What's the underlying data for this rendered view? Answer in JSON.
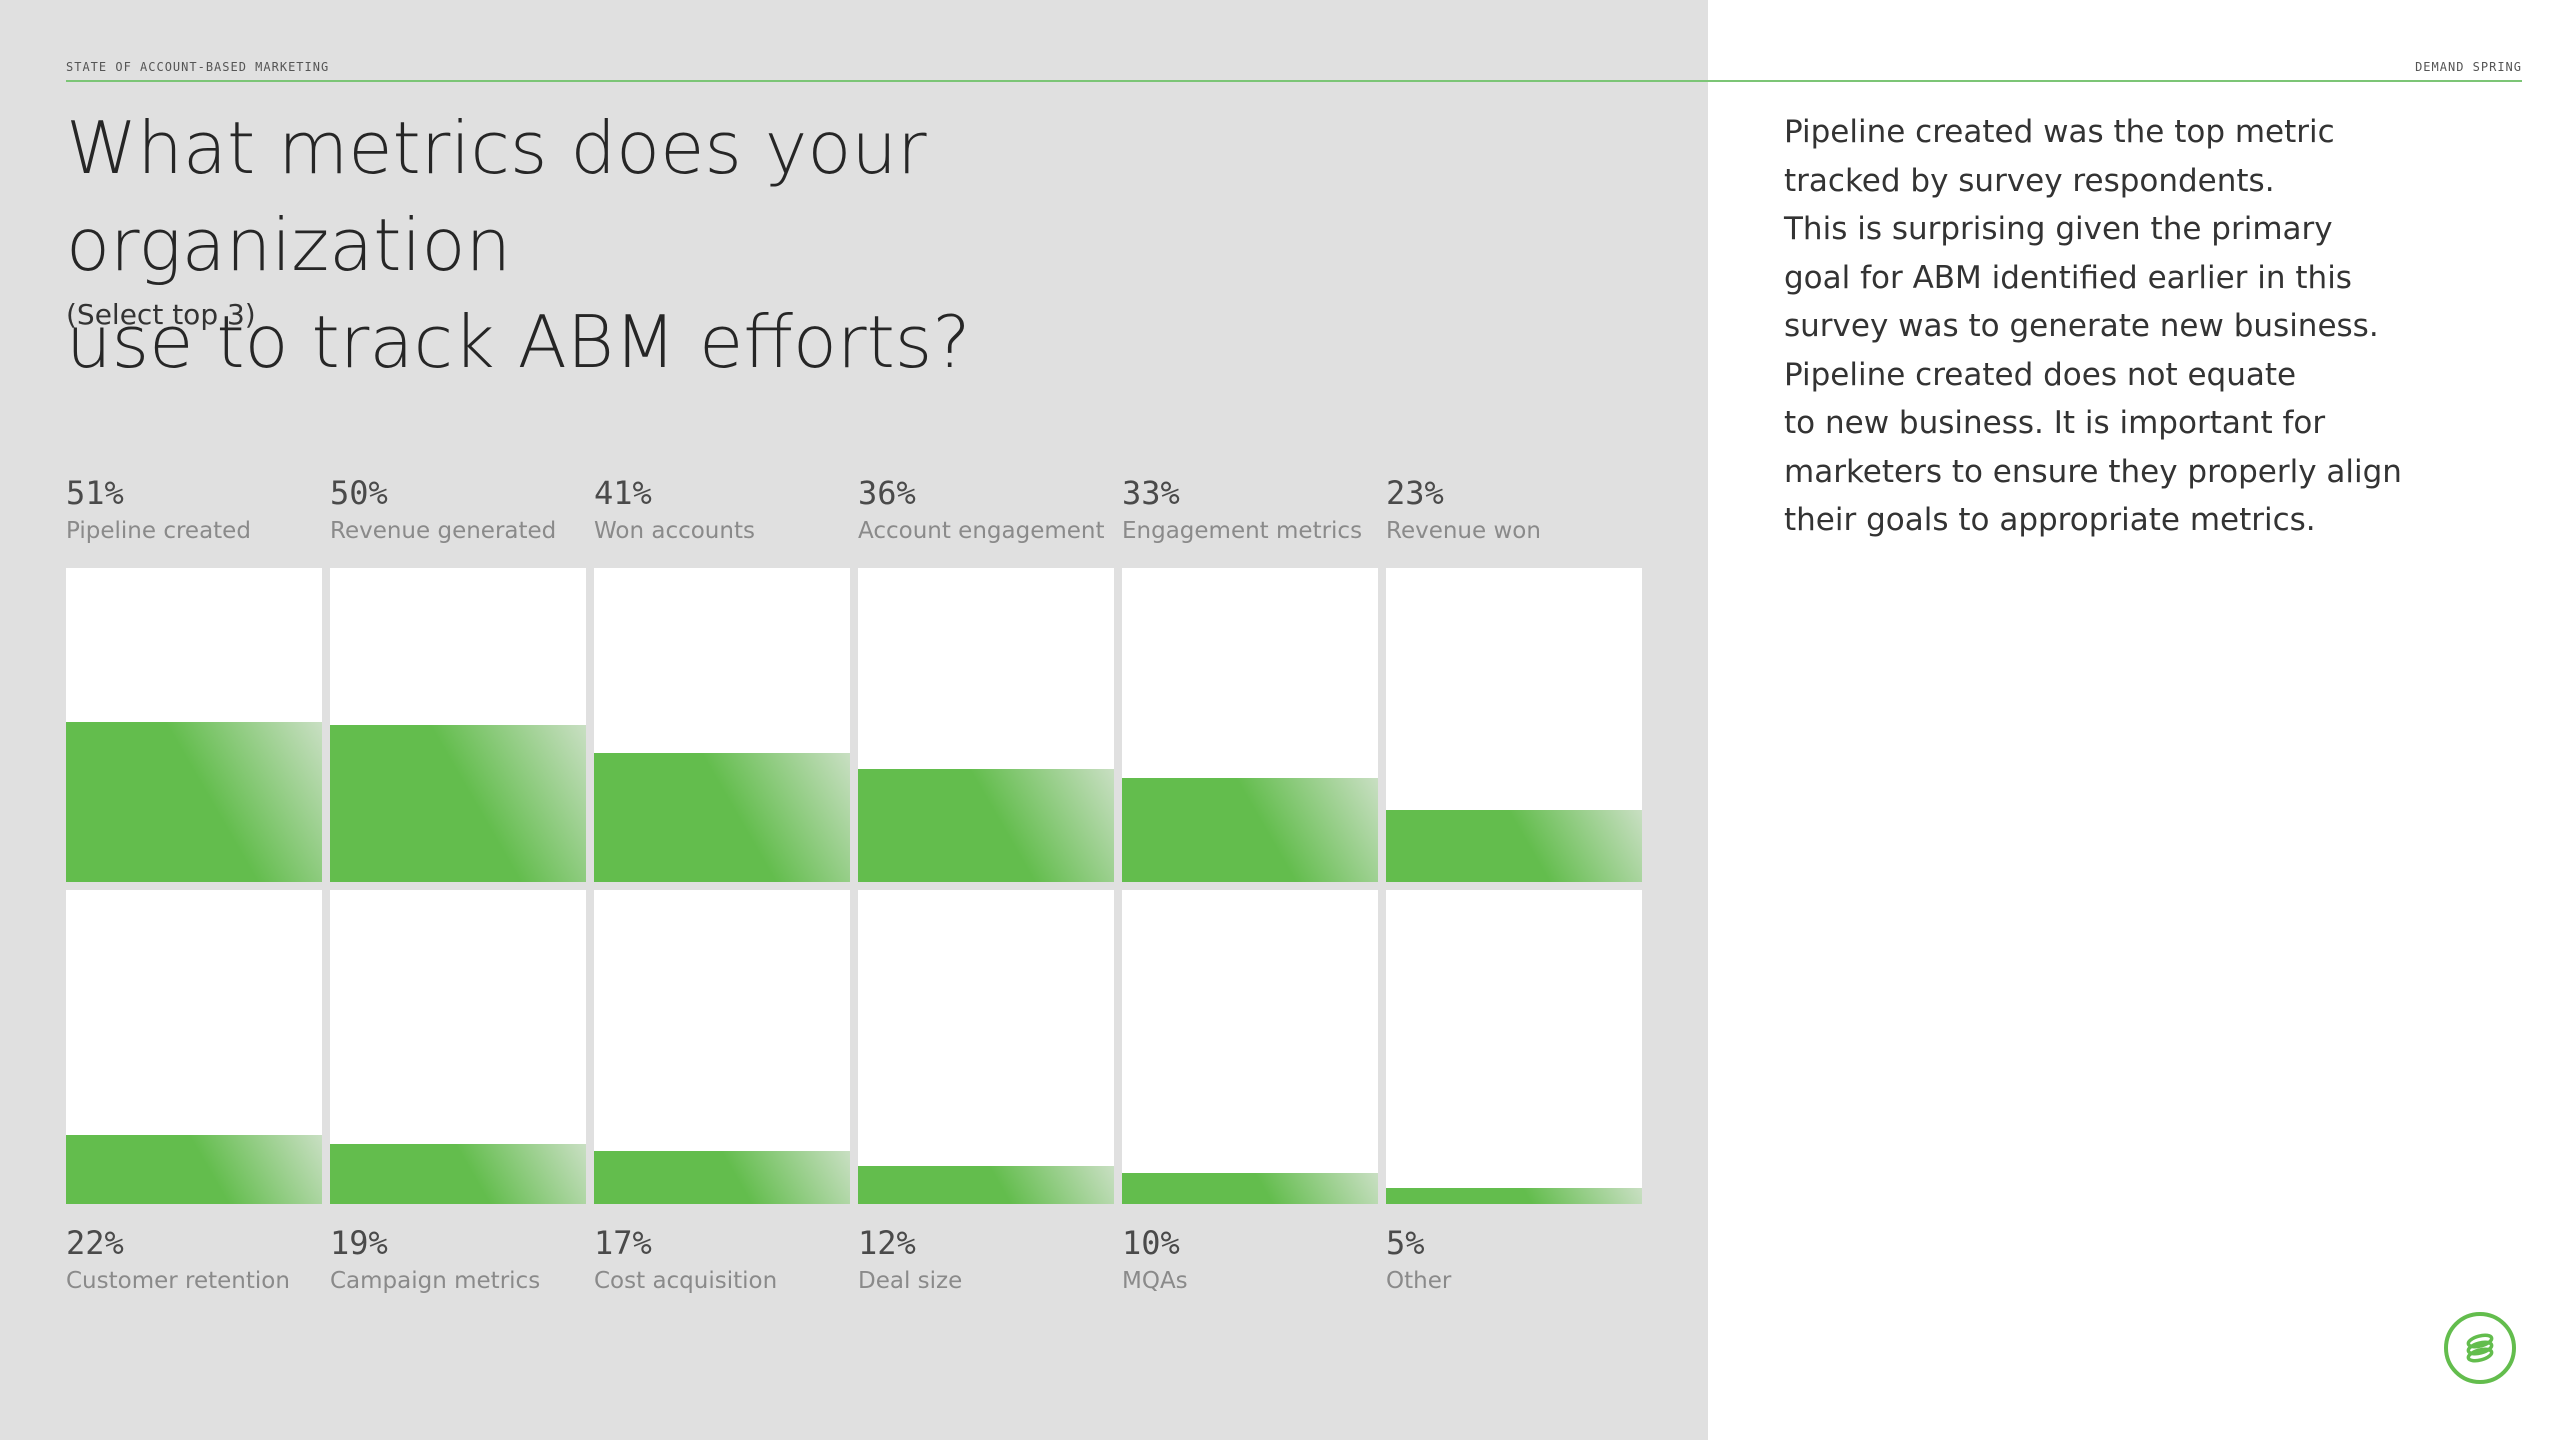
{
  "header": {
    "left_label": "STATE OF ACCOUNT-BASED MARKETING",
    "right_label": "DEMAND SPRING"
  },
  "title_line1": "What metrics does your organization",
  "title_line2": "use to track ABM efforts?",
  "subtitle": "(Select top 3)",
  "body_lines": [
    "Pipeline created was the top metric",
    "tracked by survey respondents.",
    "This is surprising given the primary",
    "goal for ABM identified earlier in this",
    "survey was to generate new business.",
    "Pipeline created does not equate",
    "to new business. It is important for",
    "marketers to ensure they properly align",
    "their goals to appropriate metrics."
  ],
  "colors": {
    "accent": "#63bd4d",
    "panel_bg": "#e0e0e0"
  },
  "logo": {
    "icon": "demand-spring-logo-icon"
  },
  "chart_data": {
    "type": "bar",
    "ylim": [
      0,
      100
    ],
    "categories": [
      "Pipeline created",
      "Revenue generated",
      "Won accounts",
      "Account engagement",
      "Engagement metrics",
      "Revenue won",
      "Customer retention",
      "Campaign metrics",
      "Cost acquisition",
      "Deal size",
      "MQAs",
      "Other"
    ],
    "values": [
      51,
      50,
      41,
      36,
      33,
      23,
      22,
      19,
      17,
      12,
      10,
      5
    ],
    "value_labels": [
      "51%",
      "50%",
      "41%",
      "36%",
      "33%",
      "23%",
      "22%",
      "19%",
      "17%",
      "12%",
      "10%",
      "5%"
    ]
  }
}
